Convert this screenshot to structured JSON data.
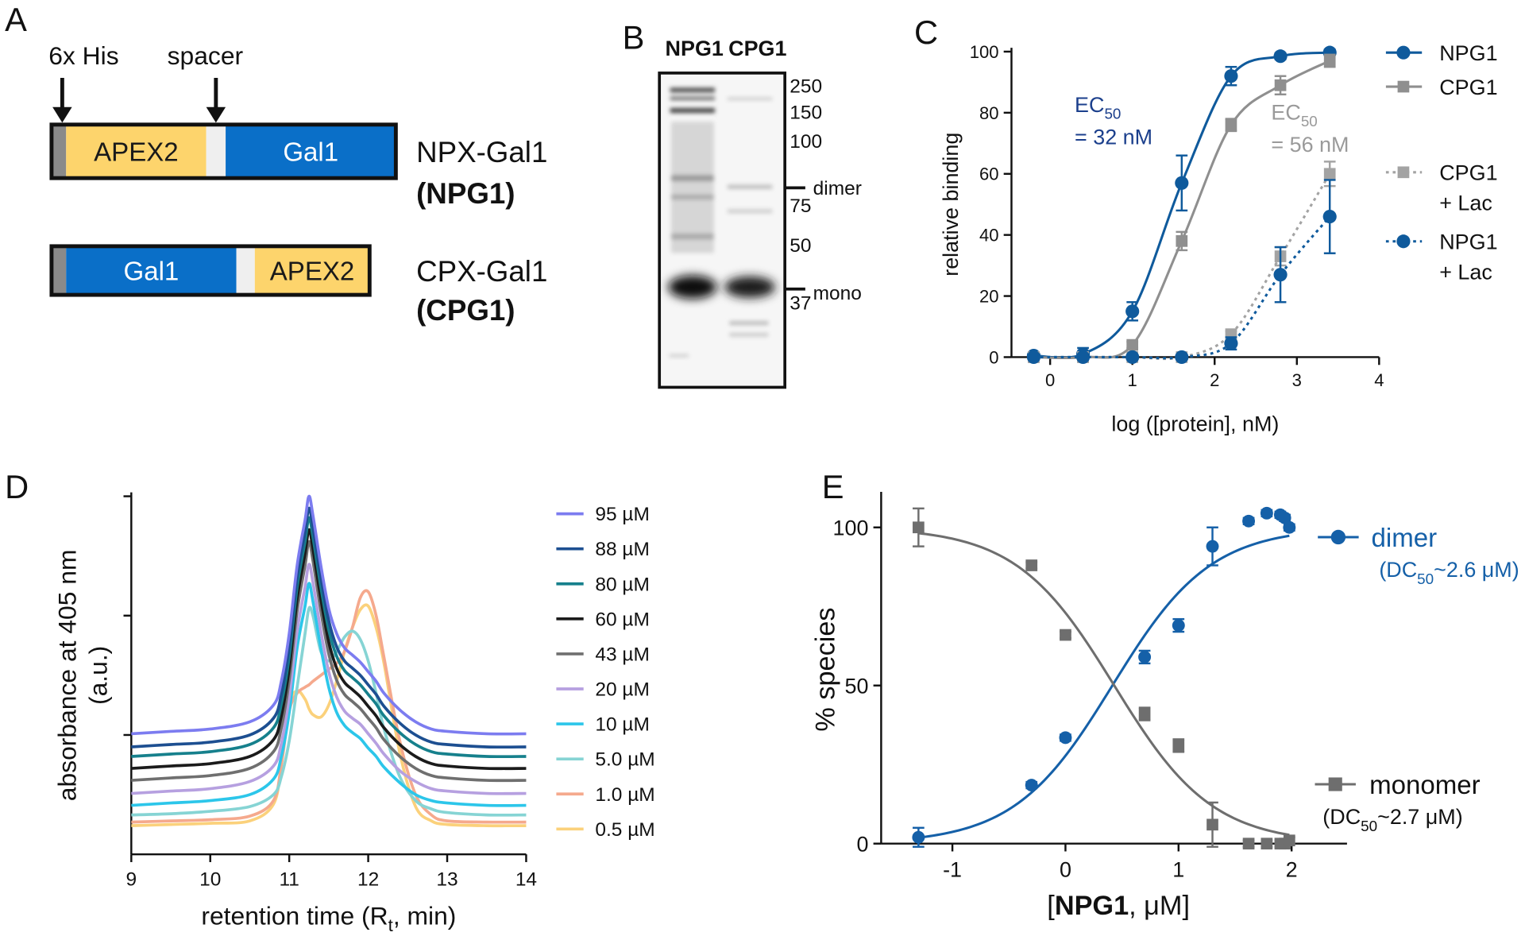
{
  "panel_labels": [
    "A",
    "B",
    "C",
    "D",
    "E"
  ],
  "constructs": {
    "tag_labels": [
      "6x His",
      "spacer"
    ],
    "items": [
      {
        "segments": [
          {
            "label": "APEX2",
            "color": "#fdd46c",
            "text_color": "#1a1a1a"
          },
          {
            "label": "Gal1",
            "color": "#0a6fc8",
            "text_color": "#ffffff"
          }
        ],
        "name": "NPX-Gal1",
        "abbr": "(NPG1)"
      },
      {
        "segments": [
          {
            "label": "Gal1",
            "color": "#0a6fc8",
            "text_color": "#ffffff"
          },
          {
            "label": "APEX2",
            "color": "#fdd46c",
            "text_color": "#1a1a1a"
          }
        ],
        "name": "CPX-Gal1",
        "abbr": "(CPG1)"
      }
    ]
  },
  "gel": {
    "lanes": [
      "NPG1",
      "CPG1"
    ],
    "markers": [
      250,
      150,
      100,
      75,
      50,
      37
    ],
    "bands": [
      "dimer",
      "mono"
    ]
  },
  "chart_data": [
    {
      "type": "line",
      "xlabel": "log ([protein], nM)",
      "ylabel": "relative binding",
      "x": [
        -0.2,
        0.4,
        1,
        1.6,
        2.2,
        2.8,
        3.4
      ],
      "xlim": [
        -0.47,
        4
      ],
      "ylim": [
        0,
        100
      ],
      "xticks": [
        0,
        1,
        2,
        3,
        4
      ],
      "yticks": [
        0,
        20,
        40,
        60,
        80,
        100
      ],
      "series": [
        {
          "name": [
            "NPG1"
          ],
          "color": "#0f5a9c",
          "marker": "circle",
          "dashed": false,
          "values": [
            0.5,
            1,
            15,
            57,
            92,
            98.5,
            99.7
          ],
          "errors": [
            1,
            2,
            3,
            9,
            3,
            1,
            1
          ]
        },
        {
          "name": [
            "CPG1"
          ],
          "color": "#8f8f8f",
          "marker": "square",
          "dashed": false,
          "values": [
            0,
            0,
            4,
            38,
            76,
            89,
            97
          ],
          "errors": [
            0.5,
            1,
            1,
            3,
            2,
            3,
            2
          ]
        },
        {
          "name": [
            "CPG1",
            "+ Lac"
          ],
          "color": "#a3a3a3",
          "marker": "square",
          "dashed": true,
          "values": [
            0,
            0,
            0,
            0,
            7.5,
            33,
            60
          ],
          "errors": [
            0,
            0,
            0,
            0,
            1,
            3,
            4
          ]
        },
        {
          "name": [
            "NPG1",
            "+ Lac"
          ],
          "color": "#0f5a9c",
          "marker": "circle",
          "dashed": true,
          "values": [
            0,
            0,
            0,
            0,
            4.5,
            27,
            46
          ],
          "errors": [
            0,
            0,
            0,
            0,
            2,
            9,
            12
          ]
        }
      ],
      "annotations": [
        {
          "text": "EC",
          "sub": "50",
          "line2": "= 32 nM",
          "color": "#1b3f8c"
        },
        {
          "text": "EC",
          "sub": "50",
          "line2": "= 56 nM",
          "color": "#9a9a9a"
        }
      ]
    },
    {
      "type": "line",
      "xlabel": {
        "text": "retention time (R",
        "sub": "t",
        "tail": ", min)"
      },
      "ylabel": [
        "absorbance at 405 nm",
        "(a.u.)"
      ],
      "x": [
        9,
        9.5,
        10,
        10.5,
        10.8,
        10.9,
        11,
        11.1,
        11.2,
        11.25,
        11.3,
        11.4,
        11.5,
        11.6,
        11.7,
        11.8,
        11.9,
        12,
        12.1,
        12.2,
        12.4,
        12.6,
        12.8,
        13,
        13.5,
        14
      ],
      "xlim": [
        9,
        14
      ],
      "ylim": [
        0,
        3
      ],
      "xticks": [
        9,
        10,
        11,
        12,
        13,
        14
      ],
      "yticks": [
        1,
        2,
        3
      ],
      "ytick_labels": false,
      "series": [
        {
          "name": "95 µM",
          "color": "#7c7cf0",
          "values": [
            1.01,
            1.03,
            1.05,
            1.11,
            1.25,
            1.45,
            1.85,
            2.42,
            2.8,
            3,
            2.84,
            2.42,
            2.06,
            1.85,
            1.73,
            1.67,
            1.61,
            1.53,
            1.45,
            1.35,
            1.21,
            1.11,
            1.05,
            1.03,
            1.01,
            1.01
          ]
        },
        {
          "name": "88 µM",
          "color": "#1d4f91",
          "values": [
            0.9,
            0.92,
            0.94,
            1,
            1.14,
            1.34,
            1.74,
            2.32,
            2.7,
            2.9,
            2.74,
            2.32,
            1.96,
            1.74,
            1.62,
            1.56,
            1.5,
            1.42,
            1.34,
            1.24,
            1.1,
            1,
            0.94,
            0.92,
            0.9,
            0.9
          ]
        },
        {
          "name": "80 µM",
          "color": "#16808c",
          "values": [
            0.82,
            0.84,
            0.86,
            0.92,
            1.06,
            1.26,
            1.66,
            2.24,
            2.62,
            2.82,
            2.66,
            2.24,
            1.88,
            1.66,
            1.54,
            1.48,
            1.42,
            1.34,
            1.26,
            1.16,
            1.02,
            0.92,
            0.86,
            0.84,
            0.82,
            0.82
          ]
        },
        {
          "name": "60 µM",
          "color": "#1b1b1b",
          "values": [
            0.72,
            0.74,
            0.76,
            0.82,
            0.96,
            1.16,
            1.56,
            2.14,
            2.52,
            2.72,
            2.56,
            2.14,
            1.78,
            1.56,
            1.44,
            1.38,
            1.32,
            1.24,
            1.16,
            1.06,
            0.92,
            0.82,
            0.76,
            0.74,
            0.72,
            0.72
          ]
        },
        {
          "name": "43 µM",
          "color": "#6f6f6f",
          "values": [
            0.62,
            0.64,
            0.66,
            0.72,
            0.86,
            1.06,
            1.46,
            2.04,
            2.42,
            2.62,
            2.46,
            2.04,
            1.68,
            1.46,
            1.34,
            1.28,
            1.22,
            1.14,
            1.06,
            0.96,
            0.82,
            0.72,
            0.66,
            0.64,
            0.62,
            0.62
          ]
        },
        {
          "name": "20 µM",
          "color": "#b6a0e0",
          "values": [
            0.51,
            0.53,
            0.55,
            0.61,
            0.74,
            0.93,
            1.32,
            1.87,
            2.24,
            2.43,
            2.28,
            1.87,
            1.53,
            1.32,
            1.2,
            1.14,
            1.09,
            1.01,
            0.93,
            0.84,
            0.7,
            0.61,
            0.55,
            0.53,
            0.51,
            0.51
          ]
        },
        {
          "name": "10 µM",
          "color": "#2cc6ea",
          "values": [
            0.41,
            0.43,
            0.45,
            0.5,
            0.63,
            0.82,
            1.19,
            1.73,
            2.08,
            2.27,
            2.12,
            1.73,
            1.4,
            1.19,
            1.08,
            1.02,
            0.97,
            0.89,
            0.82,
            0.73,
            0.6,
            0.5,
            0.45,
            0.43,
            0.41,
            0.41
          ]
        },
        {
          "name": "5.0 µM",
          "color": "#86d4d4",
          "values": [
            0.33,
            0.34,
            0.36,
            0.4,
            0.5,
            0.65,
            0.95,
            1.4,
            1.85,
            2.06,
            2,
            1.7,
            1.62,
            1.7,
            1.82,
            1.87,
            1.8,
            1.62,
            1.35,
            1.05,
            0.65,
            0.45,
            0.38,
            0.35,
            0.33,
            0.33
          ]
        },
        {
          "name": "1.0 µM",
          "color": "#f5a98d",
          "values": [
            0.27,
            0.28,
            0.29,
            0.32,
            0.45,
            0.75,
            1.2,
            1.35,
            1.4,
            1.42,
            1.45,
            1.5,
            1.55,
            1.6,
            1.7,
            1.9,
            2.15,
            2.2,
            2,
            1.65,
            0.95,
            0.5,
            0.33,
            0.28,
            0.27,
            0.27
          ]
        },
        {
          "name": "0.5 µM",
          "color": "#fbd17b",
          "values": [
            0.24,
            0.25,
            0.26,
            0.28,
            0.42,
            0.75,
            1.25,
            1.37,
            1.3,
            1.22,
            1.17,
            1.15,
            1.25,
            1.45,
            1.7,
            1.9,
            2.05,
            2.08,
            1.9,
            1.6,
            0.85,
            0.4,
            0.28,
            0.25,
            0.24,
            0.24
          ]
        }
      ]
    },
    {
      "type": "scatter",
      "xlabel": {
        "open": "[",
        "bold": "NPG1",
        "close": ", μM]"
      },
      "ylabel": "% species",
      "x": [
        -1.3,
        -0.3,
        0,
        0.7,
        1,
        1.3,
        1.62,
        1.78,
        1.9,
        1.94,
        1.98
      ],
      "xlim": [
        -1.63,
        2.49
      ],
      "ylim": [
        0,
        110
      ],
      "xticks": [
        -1,
        0,
        1,
        2
      ],
      "yticks": [
        0,
        50,
        100
      ],
      "series": [
        {
          "name": "dimer",
          "color": "#1560a8",
          "marker": "circle",
          "fit": "increasing",
          "values": [
            2,
            18.5,
            33.5,
            59,
            69,
            94,
            102,
            104.5,
            104,
            103,
            100
          ],
          "errors": [
            3,
            1,
            1,
            2,
            2,
            6,
            1,
            1,
            1,
            1,
            1
          ],
          "annotation": {
            "text": "(DC",
            "sub": "50",
            "value": 2.6,
            "label": "~2.6 μM)",
            "color": "#1560a8"
          }
        },
        {
          "name": "monomer",
          "color": "#6e6e6e",
          "marker": "square",
          "fit": "decreasing",
          "values": [
            100,
            88,
            66,
            41,
            31,
            6,
            0,
            0,
            0,
            0,
            1
          ],
          "errors": [
            6,
            1,
            1,
            2,
            2,
            7,
            1,
            1,
            1,
            1,
            1
          ],
          "annotation": {
            "text": "(DC",
            "sub": "50",
            "value": 2.7,
            "label": "~2.7 μM)",
            "color": "#111111"
          }
        }
      ]
    }
  ]
}
